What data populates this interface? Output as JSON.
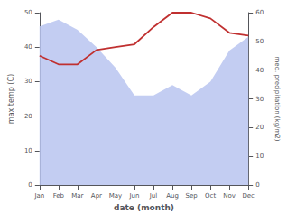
{
  "chart_data": {
    "type": "line",
    "xlabel": "date (month)",
    "ylabel": "max temp (C)",
    "y2label": "med. precipitation (kg/m2)",
    "categories": [
      "Jan",
      "Feb",
      "Mar",
      "Apr",
      "May",
      "Jun",
      "Jul",
      "Aug",
      "Sep",
      "Oct",
      "Nov",
      "Dec"
    ],
    "series": [
      {
        "type": "area",
        "color": "#b8c4f0",
        "values": [
          46,
          48,
          45,
          40,
          34,
          26,
          26,
          29,
          26,
          30,
          39,
          43
        ]
      },
      {
        "type": "line",
        "color": "#c03030",
        "axis": "y2",
        "values": [
          45,
          42,
          42,
          47,
          48,
          49,
          55,
          60,
          60,
          58,
          53,
          52
        ]
      }
    ],
    "ylim": [
      0,
      50
    ],
    "yticks": [
      0,
      10,
      20,
      30,
      40,
      50
    ],
    "y2lim": [
      0,
      60
    ],
    "y2ticks": [
      0,
      10,
      20,
      30,
      40,
      50,
      60
    ],
    "grid": false
  }
}
